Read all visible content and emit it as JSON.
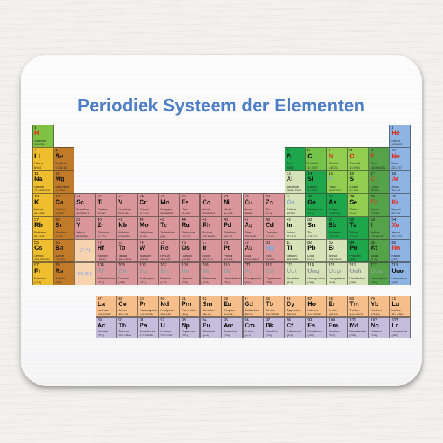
{
  "title": "Periodiek Systeem der Elementen",
  "colors": {
    "hydrogen": "#7fc143",
    "alkali": "#efbe2e",
    "alkaline": "#c07a28",
    "transition": "#d9979b",
    "marker": "#f8d3b0",
    "post": "#d6e2b8",
    "metalloid": "#1ea64c",
    "nonmetal": "#92ce50",
    "carbon": "#74c24a",
    "halogen": "#55a349",
    "noble": "#8db4e2",
    "lanthanide": "#f5be8a",
    "actinide": "#c6bcdc"
  },
  "symbol_colors": {
    "default": "#151515",
    "red": "#dc2e1f",
    "blue": "#7fa6d9",
    "gray": "#989da2",
    "marker": "#9db3d9"
  },
  "main": [
    [
      1,
      "H",
      "Waterstof",
      "1.00794",
      1,
      1,
      "hydrogen",
      "red"
    ],
    [
      2,
      "He",
      "Helium",
      "4.002602",
      1,
      18,
      "noble",
      "red"
    ],
    [
      3,
      "Li",
      "Lithium",
      "6.941",
      2,
      1,
      "alkali"
    ],
    [
      4,
      "Be",
      "Beryllium",
      "9.012182",
      2,
      2,
      "alkaline"
    ],
    [
      5,
      "B",
      "Boor",
      "10.811",
      2,
      13,
      "metalloid"
    ],
    [
      6,
      "C",
      "Koolstof",
      "12.0107",
      2,
      14,
      "carbon"
    ],
    [
      7,
      "N",
      "Stikstof",
      "14.0067",
      2,
      15,
      "nonmetal",
      "red"
    ],
    [
      8,
      "O",
      "Zuurstof",
      "15.9994",
      2,
      16,
      "nonmetal",
      "red"
    ],
    [
      9,
      "F",
      "Fluor",
      "18.9984032",
      2,
      17,
      "halogen",
      "red"
    ],
    [
      10,
      "Ne",
      "Neon",
      "20.1797",
      2,
      18,
      "noble",
      "red"
    ],
    [
      11,
      "Na",
      "Natrium",
      "22.98976928",
      3,
      1,
      "alkali"
    ],
    [
      12,
      "Mg",
      "Magnesium",
      "24.3050",
      3,
      2,
      "alkaline"
    ],
    [
      13,
      "Al",
      "Aluminium",
      "26.9815386",
      3,
      13,
      "post"
    ],
    [
      14,
      "Si",
      "Silicium",
      "28.0855",
      3,
      14,
      "metalloid"
    ],
    [
      15,
      "P",
      "Fosfor",
      "30.973762",
      3,
      15,
      "nonmetal",
      "blue"
    ],
    [
      16,
      "S",
      "Zwavel",
      "32.065",
      3,
      16,
      "nonmetal"
    ],
    [
      17,
      "Cl",
      "Chloor",
      "35.453",
      3,
      17,
      "halogen",
      "red"
    ],
    [
      18,
      "Ar",
      "Argon",
      "39.948",
      3,
      18,
      "noble",
      "red"
    ],
    [
      19,
      "K",
      "Kalium",
      "39.0983",
      4,
      1,
      "alkali"
    ],
    [
      20,
      "Ca",
      "Calcium",
      "40.078",
      4,
      2,
      "alkaline"
    ],
    [
      21,
      "Sc",
      "Scandium",
      "44.955912",
      4,
      3,
      "transition"
    ],
    [
      22,
      "Ti",
      "Titanium",
      "47.867",
      4,
      4,
      "transition"
    ],
    [
      23,
      "V",
      "Vanadium",
      "50.9415",
      4,
      5,
      "transition"
    ],
    [
      24,
      "Cr",
      "Chroom",
      "51.9961",
      4,
      6,
      "transition"
    ],
    [
      25,
      "Mn",
      "Mangaan",
      "54.938045",
      4,
      7,
      "transition"
    ],
    [
      26,
      "Fe",
      "IJzer",
      "55.845",
      4,
      8,
      "transition"
    ],
    [
      27,
      "Co",
      "Kobalt",
      "58.933195",
      4,
      9,
      "transition"
    ],
    [
      28,
      "Ni",
      "Nikkel",
      "58.6934",
      4,
      10,
      "transition"
    ],
    [
      29,
      "Cu",
      "Koper",
      "63.546",
      4,
      11,
      "transition"
    ],
    [
      30,
      "Zn",
      "Zink",
      "65.38",
      4,
      12,
      "transition"
    ],
    [
      31,
      "Ga",
      "Gallium",
      "69.723",
      4,
      13,
      "post",
      "blue"
    ],
    [
      32,
      "Ge",
      "Germanium",
      "72.64",
      4,
      14,
      "metalloid"
    ],
    [
      33,
      "As",
      "Arseen",
      "74.92160",
      4,
      15,
      "metalloid"
    ],
    [
      34,
      "Se",
      "Seleen",
      "78.96",
      4,
      16,
      "nonmetal"
    ],
    [
      35,
      "Br",
      "Broom",
      "79.904",
      4,
      17,
      "halogen",
      "red"
    ],
    [
      36,
      "Kr",
      "Krypton",
      "83.798",
      4,
      18,
      "noble",
      "red"
    ],
    [
      37,
      "Rb",
      "Rubidium",
      "85.4678",
      5,
      1,
      "alkali"
    ],
    [
      38,
      "Sr",
      "Strontium",
      "87.62",
      5,
      2,
      "alkaline"
    ],
    [
      39,
      "Y",
      "Yttrium",
      "88.90585",
      5,
      3,
      "transition"
    ],
    [
      40,
      "Zr",
      "Zirkonium",
      "91.224",
      5,
      4,
      "transition"
    ],
    [
      41,
      "Nb",
      "Niobium",
      "92.90638",
      5,
      5,
      "transition"
    ],
    [
      42,
      "Mo",
      "Molybdeen",
      "95.96",
      5,
      6,
      "transition"
    ],
    [
      43,
      "Tc",
      "Technetium",
      "(98)",
      5,
      7,
      "transition"
    ],
    [
      44,
      "Ru",
      "Ruthenium",
      "101.07",
      5,
      8,
      "transition"
    ],
    [
      45,
      "Rh",
      "Rodium",
      "102.90550",
      5,
      9,
      "transition"
    ],
    [
      46,
      "Pd",
      "Palladium",
      "106.42",
      5,
      10,
      "transition"
    ],
    [
      47,
      "Ag",
      "Zilver",
      "107.8682",
      5,
      11,
      "transition"
    ],
    [
      48,
      "Cd",
      "Cadmium",
      "112.411",
      5,
      12,
      "transition"
    ],
    [
      49,
      "In",
      "Indium",
      "114.818",
      5,
      13,
      "post"
    ],
    [
      50,
      "Sn",
      "Tin",
      "118.710",
      5,
      14,
      "post"
    ],
    [
      51,
      "Sb",
      "Antimoon",
      "121.760",
      5,
      15,
      "metalloid"
    ],
    [
      52,
      "Te",
      "Telluur",
      "127.60",
      5,
      16,
      "metalloid"
    ],
    [
      53,
      "I",
      "Jodium",
      "126.90447",
      5,
      17,
      "halogen"
    ],
    [
      54,
      "Xe",
      "Xenon",
      "131.293",
      5,
      18,
      "noble",
      "red"
    ],
    [
      55,
      "Cs",
      "Cesium",
      "132.9054519",
      6,
      1,
      "alkali"
    ],
    [
      56,
      "Ba",
      "Barium",
      "137.327",
      6,
      2,
      "alkaline"
    ],
    [
      null,
      "57-71",
      "",
      "",
      6,
      3,
      "marker",
      "marker"
    ],
    [
      72,
      "Hf",
      "Hafnium",
      "178.49",
      6,
      4,
      "transition"
    ],
    [
      73,
      "Ta",
      "Tantaal",
      "180.94788",
      6,
      5,
      "transition"
    ],
    [
      74,
      "W",
      "Wolfraam",
      "183.84",
      6,
      6,
      "transition"
    ],
    [
      75,
      "Re",
      "Renium",
      "186.207",
      6,
      7,
      "transition"
    ],
    [
      76,
      "Os",
      "Osmium",
      "190.23",
      6,
      8,
      "transition"
    ],
    [
      77,
      "Ir",
      "Iridium",
      "192.217",
      6,
      9,
      "transition"
    ],
    [
      78,
      "Pt",
      "Platina",
      "195.084",
      6,
      10,
      "transition"
    ],
    [
      79,
      "Au",
      "Goud",
      "196.966569",
      6,
      11,
      "transition"
    ],
    [
      80,
      "Hg",
      "Kwik",
      "200.59",
      6,
      12,
      "transition",
      "blue"
    ],
    [
      81,
      "Tl",
      "Thallium",
      "204.3833",
      6,
      13,
      "post"
    ],
    [
      82,
      "Pb",
      "Lood",
      "207.2",
      6,
      14,
      "post"
    ],
    [
      83,
      "Bi",
      "Bismut",
      "208.98040",
      6,
      15,
      "post"
    ],
    [
      84,
      "Po",
      "Polonium",
      "(209)",
      6,
      16,
      "metalloid"
    ],
    [
      85,
      "At",
      "Astaat",
      "(210)",
      6,
      17,
      "halogen"
    ],
    [
      86,
      "Rn",
      "Radon",
      "(222)",
      6,
      18,
      "noble",
      "red"
    ],
    [
      87,
      "Fr",
      "Francium",
      "(223)",
      7,
      1,
      "alkali"
    ],
    [
      88,
      "Ra",
      "Radium",
      "(226)",
      7,
      2,
      "alkaline"
    ],
    [
      null,
      "89-103",
      "",
      "",
      7,
      3,
      "marker",
      "marker"
    ],
    [
      104,
      "Rf",
      "Rutherfordium",
      "(267)",
      7,
      4,
      "transition",
      "gray"
    ],
    [
      105,
      "Db",
      "Dubnium",
      "(268)",
      7,
      5,
      "transition",
      "gray"
    ],
    [
      106,
      "Sg",
      "Seaborgium",
      "(271)",
      7,
      6,
      "transition",
      "gray"
    ],
    [
      107,
      "Bh",
      "Bohrium",
      "(272)",
      7,
      7,
      "transition",
      "gray"
    ],
    [
      108,
      "Hs",
      "Hassium",
      "(270)",
      7,
      8,
      "transition",
      "gray"
    ],
    [
      109,
      "Mt",
      "Meitnerium",
      "(276)",
      7,
      9,
      "transition",
      "gray"
    ],
    [
      110,
      "Ds",
      "Darmstadtium",
      "(281)",
      7,
      10,
      "transition",
      "gray"
    ],
    [
      111,
      "Rg",
      "Roentgenium",
      "(280)",
      7,
      11,
      "transition",
      "gray"
    ],
    [
      112,
      "Cn",
      "Copernicium",
      "(285)",
      7,
      12,
      "transition",
      "gray"
    ],
    [
      113,
      "Uut",
      "Ununtrium",
      "(284)",
      7,
      13,
      "post",
      "gray"
    ],
    [
      114,
      "Uuq",
      "Ununquadium",
      "(289)",
      7,
      14,
      "post",
      "gray"
    ],
    [
      115,
      "Uup",
      "Ununpentium",
      "(288)",
      7,
      15,
      "post",
      "gray"
    ],
    [
      116,
      "Uuh",
      "Ununhexium",
      "(293)",
      7,
      16,
      "post",
      "gray"
    ],
    [
      117,
      "Uus",
      "Ununseptium",
      "(294)",
      7,
      17,
      "halogen",
      "gray"
    ],
    [
      118,
      "Uuo",
      "Ununoctium",
      "(294)",
      7,
      18,
      "noble"
    ]
  ],
  "lanthanides": [
    [
      57,
      "La",
      "Lanthaan",
      "138.90547",
      1,
      1,
      "lanthanide"
    ],
    [
      58,
      "Ce",
      "Cerium",
      "140.116",
      1,
      2,
      "lanthanide"
    ],
    [
      59,
      "Pr",
      "Praseodymium",
      "140.90765",
      1,
      3,
      "lanthanide"
    ],
    [
      60,
      "Nd",
      "Neodymium",
      "144.242",
      1,
      4,
      "lanthanide"
    ],
    [
      61,
      "Pm",
      "Promethium",
      "(145)",
      1,
      5,
      "lanthanide"
    ],
    [
      62,
      "Sm",
      "Samarium",
      "150.36",
      1,
      6,
      "lanthanide"
    ],
    [
      63,
      "Eu",
      "Europium",
      "151.964",
      1,
      7,
      "lanthanide"
    ],
    [
      64,
      "Gd",
      "Gadolinium",
      "157.25",
      1,
      8,
      "lanthanide"
    ],
    [
      65,
      "Tb",
      "Terbium",
      "158.92535",
      1,
      9,
      "lanthanide"
    ],
    [
      66,
      "Dy",
      "Dysprosium",
      "162.500",
      1,
      10,
      "lanthanide"
    ],
    [
      67,
      "Ho",
      "Holmium",
      "164.93032",
      1,
      11,
      "lanthanide"
    ],
    [
      68,
      "Er",
      "Erbium",
      "167.259",
      1,
      12,
      "lanthanide"
    ],
    [
      69,
      "Tm",
      "Thulium",
      "168.93421",
      1,
      13,
      "lanthanide"
    ],
    [
      70,
      "Yb",
      "Ytterbium",
      "173.054",
      1,
      14,
      "lanthanide"
    ],
    [
      71,
      "Lu",
      "Lutetium",
      "174.9668",
      1,
      15,
      "lanthanide"
    ]
  ],
  "actinides": [
    [
      89,
      "Ac",
      "Actinium",
      "(227)",
      1,
      1,
      "actinide"
    ],
    [
      90,
      "Th",
      "Thorium",
      "232.03806",
      1,
      2,
      "actinide"
    ],
    [
      91,
      "Pa",
      "Protactinium",
      "231.03588",
      1,
      3,
      "actinide"
    ],
    [
      92,
      "U",
      "Uranium",
      "238.02891",
      1,
      4,
      "actinide"
    ],
    [
      93,
      "Np",
      "Neptunium",
      "(237)",
      1,
      5,
      "actinide"
    ],
    [
      94,
      "Pu",
      "Plutonium",
      "(244)",
      1,
      6,
      "actinide"
    ],
    [
      95,
      "Am",
      "Americium",
      "(243)",
      1,
      7,
      "actinide"
    ],
    [
      96,
      "Cm",
      "Curium",
      "(247)",
      1,
      8,
      "actinide"
    ],
    [
      97,
      "Bk",
      "Berkelium",
      "(247)",
      1,
      9,
      "actinide"
    ],
    [
      98,
      "Cf",
      "Californium",
      "(251)",
      1,
      10,
      "actinide"
    ],
    [
      99,
      "Es",
      "Einsteinium",
      "(252)",
      1,
      11,
      "actinide"
    ],
    [
      100,
      "Fm",
      "Fermium",
      "(257)",
      1,
      12,
      "actinide"
    ],
    [
      101,
      "Md",
      "Mendelevium",
      "(258)",
      1,
      13,
      "actinide"
    ],
    [
      102,
      "No",
      "Nobelium",
      "(259)",
      1,
      14,
      "actinide"
    ],
    [
      103,
      "Lr",
      "Lawrencium",
      "(262)",
      1,
      15,
      "actinide"
    ]
  ]
}
